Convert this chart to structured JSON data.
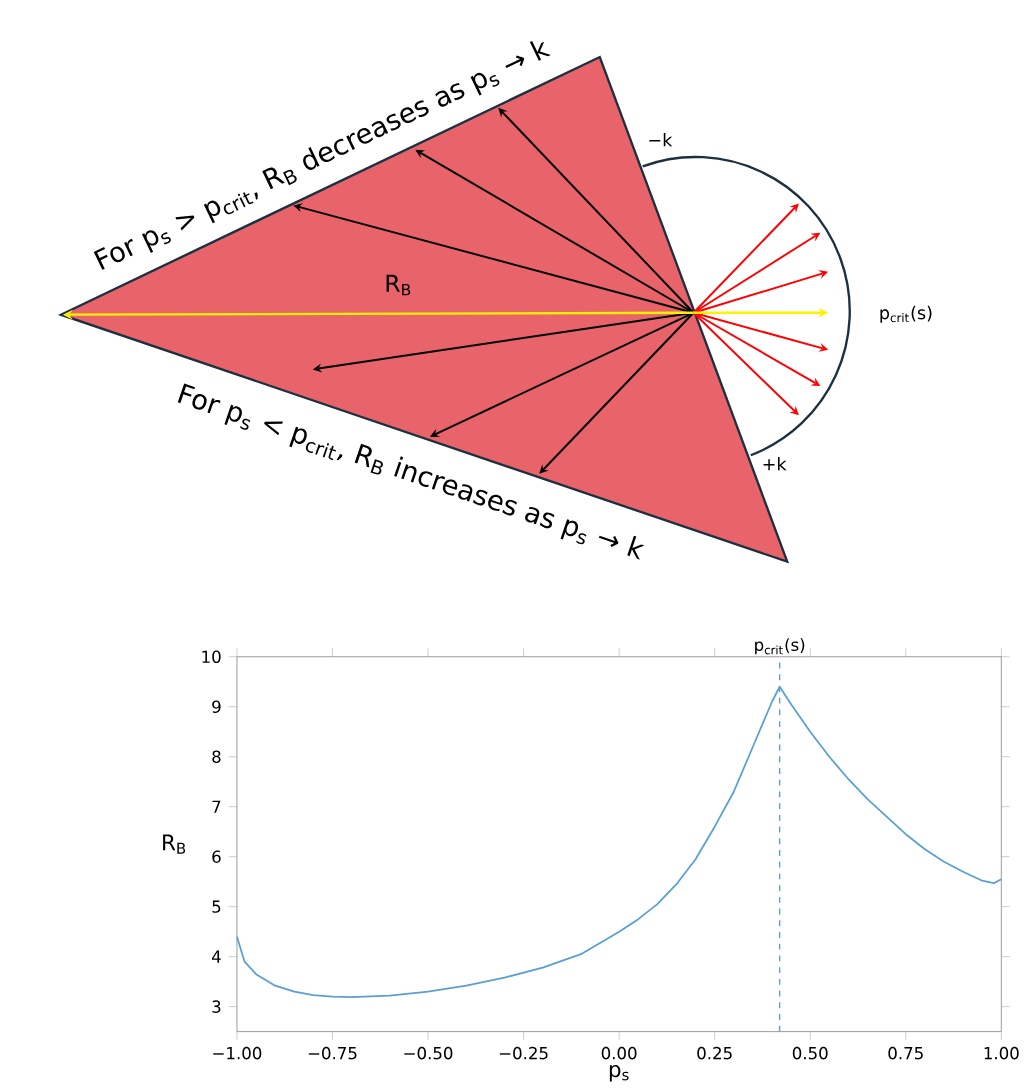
{
  "chart_data": [
    {
      "type": "other",
      "annotations": [
        "For p$_{s}$ > p$_{crit}$, R$_{B}$ decreases as p$_{s}$ → k",
        "For p$_{s}$ < p$_{crit}$, R$_{B}$ increases as p$_{s}$ → k",
        "R$_{B}$",
        "−k",
        "+k",
        "p$_{crit}$(s)"
      ]
    },
    {
      "type": "line",
      "xlabel": "p$_{s}$",
      "ylabel": "R$_{B}$",
      "color": "#5a9fd4",
      "xlim": [
        -1,
        1
      ],
      "ylim": [
        2.5,
        10
      ],
      "xticks": [
        {
          "value": -1,
          "label": "−1.00"
        },
        {
          "value": -0.75,
          "label": "−0.75"
        },
        {
          "value": -0.5,
          "label": "−0.50"
        },
        {
          "value": -0.25,
          "label": "−0.25"
        },
        {
          "value": 0,
          "label": "0.00"
        },
        {
          "value": 0.25,
          "label": "0.25"
        },
        {
          "value": 0.5,
          "label": "0.50"
        },
        {
          "value": 0.75,
          "label": "0.75"
        },
        {
          "value": 1,
          "label": "1.00"
        }
      ],
      "yticks": [
        3,
        4,
        5,
        6,
        7,
        8,
        9,
        10
      ],
      "x": [
        -1,
        -0.98,
        -0.95,
        -0.9,
        -0.85,
        -0.8,
        -0.75,
        -0.7,
        -0.6,
        -0.5,
        -0.4,
        -0.3,
        -0.2,
        -0.1,
        0,
        0.05,
        0.1,
        0.15,
        0.2,
        0.25,
        0.3,
        0.35,
        0.4,
        0.42,
        0.45,
        0.5,
        0.55,
        0.6,
        0.65,
        0.7,
        0.75,
        0.8,
        0.85,
        0.9,
        0.95,
        0.98,
        1
      ],
      "values": [
        4.4,
        3.9,
        3.65,
        3.42,
        3.3,
        3.23,
        3.2,
        3.19,
        3.22,
        3.3,
        3.42,
        3.58,
        3.78,
        4.05,
        4.5,
        4.75,
        5.05,
        5.45,
        5.95,
        6.6,
        7.3,
        8.2,
        9.1,
        9.4,
        9.05,
        8.5,
        8.0,
        7.55,
        7.15,
        6.8,
        6.45,
        6.15,
        5.9,
        5.7,
        5.52,
        5.47,
        5.55
      ],
      "ref_lines": [
        {
          "axis": "x",
          "value": 0.42,
          "label": "p$_{crit}$(s)",
          "color": "#5a9fd4",
          "line_style": "dashed"
        }
      ]
    }
  ]
}
